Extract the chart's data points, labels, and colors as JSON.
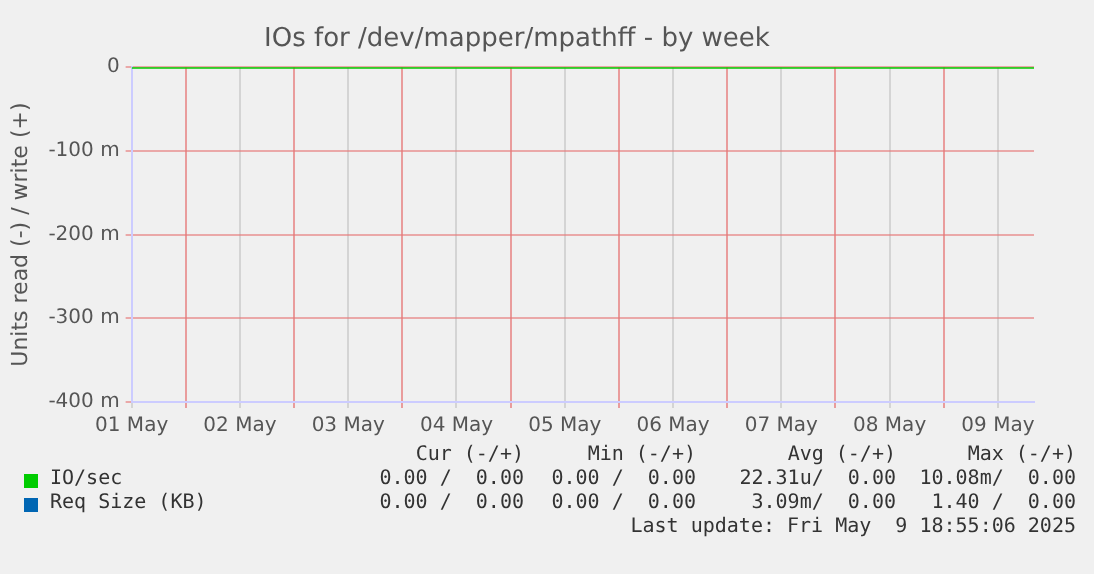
{
  "chart_data": {
    "type": "line",
    "title": "IOs for /dev/mapper/mpathff - by week",
    "ylabel": "Units read (-) / write (+)",
    "x": [
      "2025-05-01T12:00",
      "2025-05-09T20:00"
    ],
    "series": [
      {
        "name": "IO/sec",
        "color": "#00cc00",
        "values": [
          0,
          0
        ]
      },
      {
        "name": "Req Size (KB)",
        "color": "#0066b3",
        "values": [
          null,
          null
        ]
      }
    ],
    "xlim": [
      "2025-05-01T12:00",
      "2025-05-09T20:00"
    ],
    "xticks": [
      {
        "value": "2025-05-01T12:00",
        "label": "01 May"
      },
      {
        "value": "2025-05-02T00:00",
        "label": null
      },
      {
        "value": "2025-05-02T12:00",
        "label": "02 May"
      },
      {
        "value": "2025-05-03T00:00",
        "label": null
      },
      {
        "value": "2025-05-03T12:00",
        "label": "03 May"
      },
      {
        "value": "2025-05-04T00:00",
        "label": null
      },
      {
        "value": "2025-05-04T12:00",
        "label": "04 May"
      },
      {
        "value": "2025-05-05T00:00",
        "label": null
      },
      {
        "value": "2025-05-05T12:00",
        "label": "05 May"
      },
      {
        "value": "2025-05-06T00:00",
        "label": null
      },
      {
        "value": "2025-05-06T12:00",
        "label": "06 May"
      },
      {
        "value": "2025-05-07T00:00",
        "label": null
      },
      {
        "value": "2025-05-07T12:00",
        "label": "07 May"
      },
      {
        "value": "2025-05-08T00:00",
        "label": null
      },
      {
        "value": "2025-05-08T12:00",
        "label": "08 May"
      },
      {
        "value": "2025-05-09T00:00",
        "label": null
      },
      {
        "value": "2025-05-09T12:00",
        "label": "09 May"
      }
    ],
    "ylim": [
      -400,
      0
    ],
    "yticks": [
      {
        "value": -400,
        "label": "-400 m"
      },
      {
        "value": -300,
        "label": "-300 m"
      },
      {
        "value": -200,
        "label": "-200 m"
      },
      {
        "value": -100,
        "label": "-100 m"
      },
      0
    ],
    "grid": true,
    "legend": "bottom",
    "marker": "none",
    "line_style": "solid",
    "annotations": [
      "Cur (-/+)",
      "Min (-/+)",
      "Avg (-/+)",
      "Max (-/+)",
      "0.00 /  0.00",
      "0.00 /  0.00",
      "22.31u/  0.00",
      "10.08m/  0.00",
      "0.00 /  0.00",
      "0.00 /  0.00",
      "3.09m/  0.00",
      "1.40 /  0.00",
      "Last update: Fri May  9 18:55:06 2025"
    ]
  }
}
